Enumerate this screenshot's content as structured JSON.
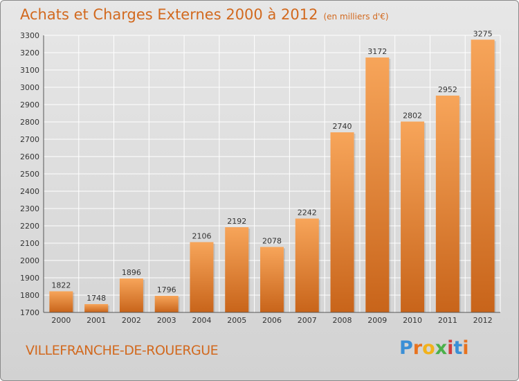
{
  "header": {
    "title": "Achats et Charges Externes 2000 à 2012",
    "unit": "(en milliers d'€)"
  },
  "footer": {
    "city": "VILLEFRANCHE-DE-ROUERGUE",
    "logo": "Proxiti"
  },
  "colors": {
    "title": "#d2691e",
    "bar_top": "#f7a55a",
    "bar_bottom": "#c8641a",
    "background": "#dcdcdc"
  },
  "chart_data": {
    "type": "bar",
    "title": "Achats et Charges Externes 2000 à 2012",
    "subtitle": "(en milliers d'€)",
    "xlabel": "",
    "ylabel": "",
    "categories": [
      "2000",
      "2001",
      "2002",
      "2003",
      "2004",
      "2005",
      "2006",
      "2007",
      "2008",
      "2009",
      "2010",
      "2011",
      "2012"
    ],
    "values": [
      1822,
      1748,
      1896,
      1796,
      2106,
      2192,
      2078,
      2242,
      2740,
      3172,
      2802,
      2952,
      3275
    ],
    "ylim": [
      1700,
      3300
    ],
    "yticks": [
      "1700",
      "1800",
      "1900",
      "2000",
      "2100",
      "2200",
      "2300",
      "2400",
      "2500",
      "2600",
      "2700",
      "2800",
      "2900",
      "3000",
      "3100",
      "3200",
      "3300"
    ],
    "grid": true,
    "data_labels": true
  }
}
